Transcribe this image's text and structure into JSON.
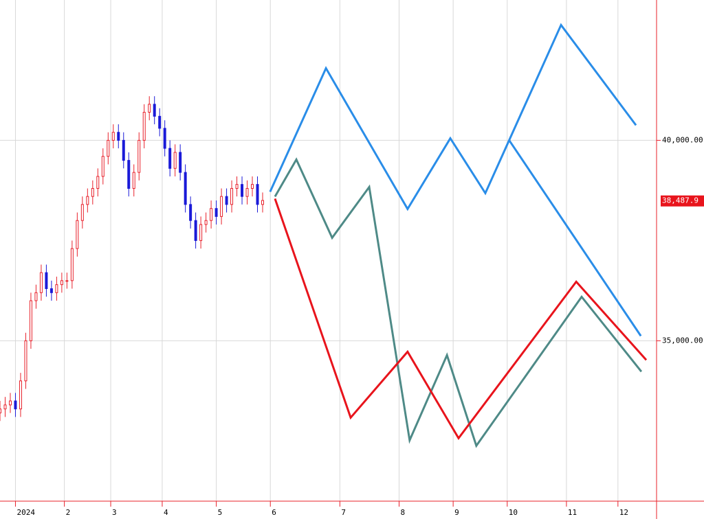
{
  "chart_data": {
    "type": "candlestick",
    "xlim": [
      0,
      255
    ],
    "ylim": [
      31000,
      43500
    ],
    "xticks": [
      {
        "value": 6,
        "label": "2024"
      },
      {
        "value": 25,
        "label": "2"
      },
      {
        "value": 43,
        "label": "3"
      },
      {
        "value": 63,
        "label": "4"
      },
      {
        "value": 84,
        "label": "5"
      },
      {
        "value": 105,
        "label": "6"
      },
      {
        "value": 132,
        "label": "7"
      },
      {
        "value": 155,
        "label": "8"
      },
      {
        "value": 176,
        "label": "9"
      },
      {
        "value": 197,
        "label": "10"
      },
      {
        "value": 220,
        "label": "11"
      },
      {
        "value": 240,
        "label": "12"
      }
    ],
    "yticks": [
      {
        "value": 35000,
        "label": "35,000.00"
      },
      {
        "value": 40000,
        "label": "40,000.00"
      }
    ],
    "grid": true,
    "up_color": "#e8202a",
    "down_color": "#1a1ad8",
    "candles": {
      "x": [
        0,
        2,
        4,
        6,
        8,
        10,
        12,
        14,
        16,
        18,
        20,
        22,
        24,
        26,
        28,
        30,
        32,
        34,
        36,
        38,
        40,
        42,
        44,
        46,
        48,
        50,
        52,
        54,
        56,
        58,
        60,
        62,
        64,
        66,
        68,
        70,
        72,
        74,
        76,
        78,
        80,
        82,
        84,
        86,
        88,
        90,
        92,
        94,
        96,
        98,
        100,
        102
      ],
      "open": [
        33200,
        33300,
        33400,
        33500,
        33300,
        34000,
        35000,
        36000,
        36200,
        36700,
        36300,
        36200,
        36400,
        36500,
        36500,
        37300,
        38000,
        38400,
        38600,
        38800,
        39100,
        39600,
        40000,
        40200,
        40000,
        39500,
        38800,
        39200,
        40000,
        40700,
        40900,
        40600,
        40300,
        39800,
        39300,
        39700,
        39200,
        38400,
        38000,
        37500,
        37900,
        38000,
        38300,
        38100,
        38600,
        38400,
        38800,
        38900,
        38600,
        38800,
        38900,
        38400
      ],
      "high": [
        33500,
        33600,
        33700,
        33700,
        34200,
        35200,
        36200,
        36400,
        36900,
        36900,
        36500,
        36600,
        36700,
        36700,
        37500,
        38200,
        38600,
        38800,
        39000,
        39300,
        39800,
        40200,
        40400,
        40400,
        40200,
        39700,
        39400,
        40200,
        40900,
        41100,
        41100,
        40800,
        40500,
        40000,
        39900,
        39900,
        39400,
        38600,
        38200,
        38100,
        38200,
        38500,
        38500,
        38800,
        38800,
        39000,
        39100,
        39100,
        39000,
        39100,
        39100,
        38700
      ],
      "low": [
        33000,
        33100,
        33200,
        33100,
        33100,
        33800,
        34800,
        35800,
        36000,
        36100,
        36000,
        36000,
        36200,
        36300,
        36300,
        37100,
        37800,
        38200,
        38400,
        38600,
        38900,
        39400,
        39800,
        39800,
        39300,
        38600,
        38600,
        39000,
        39800,
        40500,
        40400,
        40100,
        39600,
        39100,
        39100,
        39000,
        38200,
        37800,
        37300,
        37300,
        37700,
        37800,
        37900,
        37900,
        38200,
        38200,
        38600,
        38400,
        38400,
        38600,
        38200,
        38200
      ],
      "close": [
        33300,
        33400,
        33500,
        33300,
        34000,
        35000,
        36000,
        36200,
        36700,
        36300,
        36200,
        36400,
        36500,
        36500,
        37300,
        38000,
        38400,
        38600,
        38800,
        39100,
        39600,
        40000,
        40200,
        40000,
        39500,
        38800,
        39200,
        40000,
        40700,
        40900,
        40600,
        40300,
        39800,
        39300,
        39700,
        39200,
        38400,
        38000,
        37500,
        37900,
        38000,
        38300,
        38100,
        38600,
        38400,
        38800,
        38900,
        38600,
        38800,
        38900,
        38400,
        38500
      ]
    },
    "series": [
      {
        "color": "#2a8de8",
        "x": [
          104.9,
          126.6,
          158.3,
          174.9,
          188.5,
          217.9,
          247.0
        ],
        "values": [
          38716,
          41798,
          38288,
          40051,
          38682,
          42876,
          40377
        ]
      },
      {
        "color": "#2a8de8",
        "x": [
          197.6,
          248.9
        ],
        "values": [
          40017,
          35120
        ]
      },
      {
        "color": "#4e8a87",
        "x": [
          106.8,
          115.1,
          129.0,
          143.4,
          159.1,
          173.6,
          185.0,
          225.9,
          249.1
        ],
        "values": [
          38596,
          39521,
          37569,
          38836,
          32519,
          34641,
          32382,
          36097,
          34231
        ]
      },
      {
        "color": "#e8141c",
        "x": [
          106.8,
          136.2,
          158.3,
          178.1,
          223.8,
          251.0
        ],
        "values": [
          38545,
          33083,
          34727,
          32570,
          36473,
          34522
        ]
      }
    ],
    "last_price": {
      "value": 38487.9,
      "label": "38,487.9"
    }
  }
}
